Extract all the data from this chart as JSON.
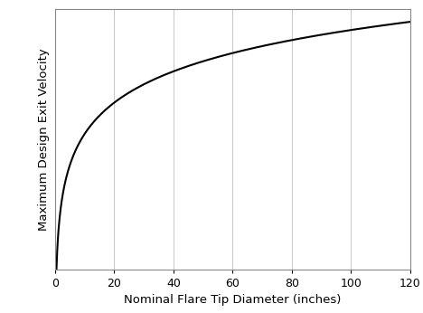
{
  "xlabel": "Nominal Flare Tip Diameter (inches)",
  "ylabel": "Maximum Design Exit Velocity",
  "xlim": [
    0,
    120
  ],
  "ylim_padding": 1.05,
  "xticks": [
    0,
    20,
    40,
    60,
    80,
    100,
    120
  ],
  "grid": true,
  "grid_color": "#c0c0c0",
  "grid_linewidth": 0.6,
  "line_color": "#000000",
  "line_width": 1.5,
  "background_color": "#ffffff",
  "spine_color": "#888888",
  "spine_linewidth": 0.8,
  "curve_xstart": 0.5,
  "curve_xend": 120,
  "curve_base": 10,
  "xlabel_fontsize": 9.5,
  "ylabel_fontsize": 9.5,
  "tick_fontsize": 9,
  "figsize": [
    4.68,
    3.46
  ],
  "dpi": 100
}
